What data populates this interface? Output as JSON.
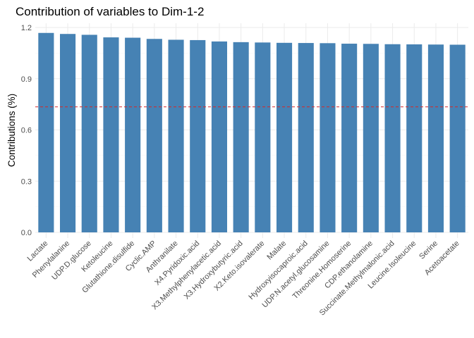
{
  "chart_data": {
    "type": "bar",
    "title": "Contribution of variables to Dim-1-2",
    "xlabel": "",
    "ylabel": "Contributions (%)",
    "ylim": [
      0,
      1.22
    ],
    "yticks": [
      "0.0",
      "0.3",
      "0.6",
      "0.9",
      "1.2"
    ],
    "ytick_values": [
      0,
      0.3,
      0.6,
      0.9,
      1.2
    ],
    "grid": true,
    "bar_color": "#4682b4",
    "reference_line": {
      "value": 0.735,
      "color": "#d62728",
      "style": "dashed"
    },
    "categories": [
      "Lactate",
      "Phenylalanine",
      "UDP.D.glucose",
      "Ketoleucine",
      "Glutathione.disulfide",
      "Cyclic.AMP",
      "Anthranilate",
      "X4.Pyridoxic.acid",
      "X3.Methylphenylacetic.acid",
      "X3.Hydroxybutyric.acid",
      "X2.Keto.isovalerate",
      "Malate",
      "Hydroxyisocaproic.acid",
      "UDP.N.acetyl.glucosamine",
      "Threonine.Homoserine",
      "CDP.ethanolamine",
      "Succinate.Methylmalonic.acid",
      "Leucine.Isoleucine",
      "Serine",
      "Acetoacetate"
    ],
    "values": [
      1.168,
      1.162,
      1.157,
      1.142,
      1.14,
      1.133,
      1.128,
      1.126,
      1.118,
      1.114,
      1.112,
      1.11,
      1.109,
      1.108,
      1.105,
      1.104,
      1.102,
      1.101,
      1.1,
      1.099
    ]
  }
}
